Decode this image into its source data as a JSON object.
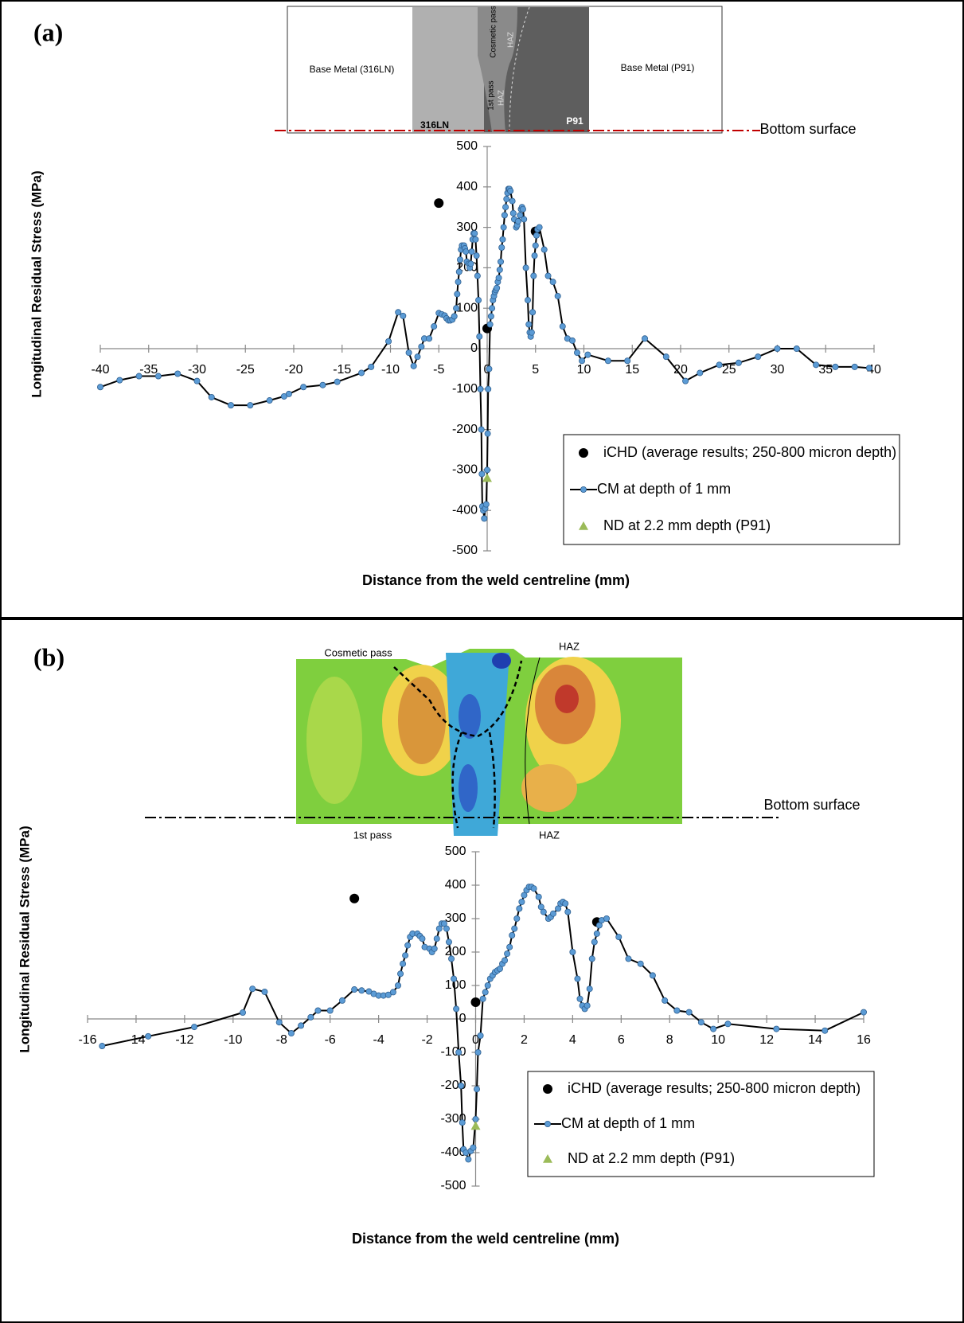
{
  "chart_data": [
    {
      "type": "line",
      "label": "(a)",
      "xlabel": "Distance from the weld centreline (mm)",
      "ylabel": "Longitudinal Residual Stress (MPa)",
      "image_labels": [
        "Base Metal (316LN)",
        "Base Metal (P91)",
        "Cosmetic pass",
        "HAZ",
        "1st pass",
        "HAZ",
        "316LN",
        "P91",
        "Bottom surface"
      ],
      "xlim": [
        -40,
        40
      ],
      "xticks": [
        -40,
        -35,
        -30,
        -25,
        -20,
        -15,
        -10,
        -5,
        0,
        5,
        10,
        15,
        20,
        25,
        30,
        35,
        40
      ],
      "ylim": [
        -500,
        500
      ],
      "yticks": [
        -500,
        -400,
        -300,
        -200,
        -100,
        0,
        100,
        200,
        300,
        400,
        500
      ],
      "legend": "lower right",
      "series": [
        {
          "name": "iCHD (average results; 250-800 micron depth)",
          "style": "dot",
          "color": "#000000",
          "x": [
            -5,
            0,
            5
          ],
          "values": [
            360,
            50,
            290
          ]
        },
        {
          "name": "CM at depth of 1 mm",
          "style": "line-marker",
          "color": "#000000",
          "marker_color": "#5b9bd5",
          "x": [
            -40,
            -38,
            -36,
            -34,
            -32,
            -30,
            -28.5,
            -26.5,
            -24.5,
            -22.5,
            -21,
            -20.5,
            -19,
            -17,
            -15.5,
            -13,
            -12,
            -10.2,
            -9.2,
            -8.7,
            -8.1,
            -7.6,
            -7.2,
            -6.8,
            -6.5,
            -6,
            -5.5,
            -5,
            -4.7,
            -4.4,
            -4.2,
            -4,
            -3.8,
            -3.6,
            -3.4,
            -3.2,
            -3.1,
            -3,
            -2.9,
            -2.8,
            -2.7,
            -2.6,
            -2.4,
            -2.3,
            -2.2,
            -2.1,
            -1.9,
            -1.8,
            -1.7,
            -1.6,
            -1.5,
            -1.4,
            -1.3,
            -1.2,
            -1.1,
            -1,
            -0.9,
            -0.8,
            -0.7,
            -0.6,
            -0.55,
            -0.5,
            -0.4,
            -0.3,
            -0.2,
            -0.1,
            0,
            0.05,
            0.1,
            0.2,
            0.3,
            0.4,
            0.5,
            0.6,
            0.7,
            0.8,
            0.9,
            1,
            1.1,
            1.2,
            1.3,
            1.4,
            1.5,
            1.6,
            1.7,
            1.8,
            1.9,
            2,
            2.1,
            2.2,
            2.3,
            2.4,
            2.6,
            2.7,
            2.8,
            3,
            3.1,
            3.2,
            3.4,
            3.5,
            3.6,
            3.7,
            3.8,
            4,
            4.2,
            4.3,
            4.4,
            4.5,
            4.6,
            4.7,
            4.8,
            4.9,
            5,
            5.1,
            5.2,
            5.4,
            5.9,
            6.3,
            6.8,
            7.3,
            7.8,
            8.3,
            8.8,
            9.3,
            9.8,
            10.4,
            12.5,
            14.5,
            16.3,
            18.5,
            20.5,
            22,
            24,
            26,
            28,
            30,
            32,
            34,
            36,
            38,
            39.5
          ],
          "values": [
            -95,
            -78,
            -68,
            -68,
            -62,
            -80,
            -120,
            -140,
            -140,
            -128,
            -118,
            -112,
            -95,
            -90,
            -82,
            -60,
            -45,
            18,
            90,
            81,
            -10,
            -43,
            -20,
            5,
            25,
            25,
            55,
            88,
            85,
            82,
            75,
            70,
            70,
            72,
            80,
            100,
            135,
            165,
            190,
            220,
            245,
            255,
            255,
            248,
            240,
            215,
            210,
            200,
            210,
            240,
            270,
            285,
            285,
            270,
            230,
            180,
            120,
            30,
            -100,
            -200,
            -310,
            -390,
            -400,
            -420,
            -395,
            -385,
            -300,
            -210,
            -100,
            -50,
            60,
            80,
            100,
            120,
            130,
            140,
            145,
            150,
            165,
            175,
            195,
            215,
            250,
            270,
            300,
            330,
            350,
            370,
            385,
            395,
            395,
            390,
            365,
            335,
            320,
            300,
            305,
            315,
            330,
            345,
            350,
            345,
            320,
            200,
            120,
            60,
            40,
            30,
            40,
            90,
            180,
            230,
            255,
            280,
            295,
            300,
            245,
            180,
            165,
            130,
            55,
            25,
            20,
            -10,
            -30,
            -15,
            -30,
            -30,
            25,
            -20,
            -80,
            -60,
            -40,
            -35,
            -20,
            0,
            0,
            -40,
            -45,
            -45,
            -48
          ]
        },
        {
          "name": "ND at 2.2 mm depth (P91)",
          "style": "triangle",
          "color": "#9bbb59",
          "x": [
            0
          ],
          "values": [
            -320
          ]
        }
      ]
    },
    {
      "type": "line",
      "label": "(b)",
      "xlabel": "Distance from the weld centreline (mm)",
      "ylabel": "Longitudinal Residual Stress (MPa)",
      "image_labels": [
        "Cosmetic pass",
        "HAZ",
        "1st pass",
        "HAZ",
        "Bottom surface"
      ],
      "xlim": [
        -16,
        16
      ],
      "xticks": [
        -16,
        -14,
        -12,
        -10,
        -8,
        -6,
        -4,
        -2,
        0,
        2,
        4,
        6,
        8,
        10,
        12,
        14,
        16
      ],
      "ylim": [
        -500,
        500
      ],
      "yticks": [
        -500,
        -400,
        -300,
        -200,
        -100,
        0,
        100,
        200,
        300,
        400,
        500
      ],
      "legend": "lower right",
      "series": [
        {
          "name": "iCHD (average results; 250-800 micron depth)",
          "style": "dot",
          "color": "#000000",
          "x": [
            -5,
            0,
            5
          ],
          "values": [
            360,
            50,
            290
          ]
        },
        {
          "name": "CM at depth of 1 mm",
          "style": "line-marker",
          "color": "#000000",
          "marker_color": "#5b9bd5",
          "x": [
            -15.4,
            -13.5,
            -11.6,
            -9.6,
            -9.2,
            -8.7,
            -8.1,
            -7.6,
            -7.2,
            -6.8,
            -6.5,
            -6,
            -5.5,
            -5,
            -4.7,
            -4.4,
            -4.2,
            -4,
            -3.8,
            -3.6,
            -3.4,
            -3.2,
            -3.1,
            -3,
            -2.9,
            -2.8,
            -2.7,
            -2.6,
            -2.4,
            -2.3,
            -2.2,
            -2.1,
            -1.9,
            -1.8,
            -1.7,
            -1.6,
            -1.5,
            -1.4,
            -1.3,
            -1.2,
            -1.1,
            -1,
            -0.9,
            -0.8,
            -0.7,
            -0.6,
            -0.55,
            -0.5,
            -0.4,
            -0.3,
            -0.2,
            -0.1,
            0,
            0.05,
            0.1,
            0.2,
            0.3,
            0.4,
            0.5,
            0.6,
            0.7,
            0.8,
            0.9,
            1,
            1.1,
            1.2,
            1.3,
            1.4,
            1.5,
            1.6,
            1.7,
            1.8,
            1.9,
            2,
            2.1,
            2.2,
            2.3,
            2.4,
            2.6,
            2.7,
            2.8,
            3,
            3.1,
            3.2,
            3.4,
            3.5,
            3.6,
            3.7,
            3.8,
            4,
            4.2,
            4.3,
            4.4,
            4.5,
            4.6,
            4.7,
            4.8,
            4.9,
            5,
            5.1,
            5.2,
            5.4,
            5.9,
            6.3,
            6.8,
            7.3,
            7.8,
            8.3,
            8.8,
            9.3,
            9.8,
            10.4,
            12.4,
            14.4,
            16
          ],
          "values": [
            -81,
            -52,
            -24,
            19,
            90,
            81,
            -10,
            -43,
            -20,
            5,
            25,
            25,
            55,
            88,
            85,
            82,
            75,
            70,
            70,
            72,
            80,
            100,
            135,
            165,
            190,
            220,
            245,
            255,
            255,
            248,
            240,
            215,
            210,
            200,
            210,
            240,
            270,
            285,
            285,
            270,
            230,
            180,
            120,
            30,
            -100,
            -200,
            -310,
            -390,
            -400,
            -420,
            -395,
            -385,
            -300,
            -210,
            -100,
            -50,
            60,
            80,
            100,
            120,
            130,
            140,
            145,
            150,
            165,
            175,
            195,
            215,
            250,
            270,
            300,
            330,
            350,
            370,
            385,
            395,
            395,
            390,
            365,
            335,
            320,
            300,
            305,
            315,
            330,
            345,
            350,
            345,
            320,
            200,
            120,
            60,
            40,
            30,
            40,
            90,
            180,
            230,
            255,
            280,
            295,
            300,
            245,
            180,
            165,
            130,
            55,
            25,
            20,
            -10,
            -30,
            -15,
            -30,
            -35,
            20
          ]
        },
        {
          "name": "ND at 2.2 mm depth (P91)",
          "style": "triangle",
          "color": "#9bbb59",
          "x": [
            0
          ],
          "values": [
            -320
          ]
        }
      ]
    }
  ]
}
